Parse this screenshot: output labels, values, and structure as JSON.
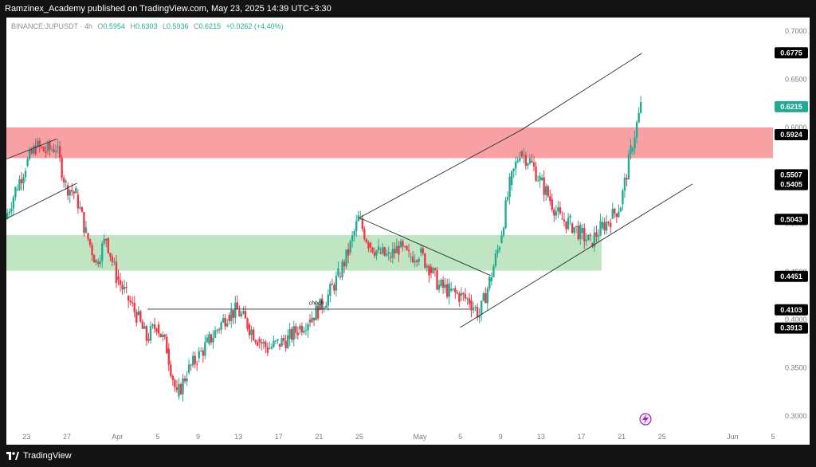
{
  "header": {
    "publisher": "Ramzinex_Academy published on TradingView.com, May 23, 2025 14:39 UTC+3:30"
  },
  "legend": {
    "symbol": "BINANCE:JUPUSDT · 4h",
    "o_label": "O",
    "o_value": "0.5954",
    "h_label": "H",
    "h_value": "0.6303",
    "l_label": "L",
    "l_value": "0.5936",
    "c_label": "C",
    "c_value": "0.6215",
    "change": "+0.0262 (+4.40%)"
  },
  "footer": {
    "brand": "TradingView"
  },
  "icons": {
    "logo": "tradingview-logo-icon",
    "flash": "lightning-icon"
  },
  "colors": {
    "up": "#22ab94",
    "down": "#f23645",
    "supply_zone": "#f7a1a5",
    "demand_zone": "#bfe5c2",
    "line": "#2a2e39",
    "last_price": "#22ab94",
    "axis_text": "#787b86"
  },
  "chart_data": {
    "type": "candlestick",
    "title": "",
    "interval": "4h",
    "ylim": [
      0.28,
      0.72
    ],
    "grid": false,
    "y_ticks": [
      "0.7000",
      "0.6500",
      "0.6000",
      "0.5500",
      "0.5000",
      "0.4500",
      "0.4000",
      "0.3500",
      "0.3000"
    ],
    "x_ticks": [
      {
        "label": "23",
        "date": "2025-03-23"
      },
      {
        "label": "27",
        "date": "2025-03-27"
      },
      {
        "label": "Apr",
        "date": "2025-04-01"
      },
      {
        "label": "5",
        "date": "2025-04-05"
      },
      {
        "label": "9",
        "date": "2025-04-09"
      },
      {
        "label": "13",
        "date": "2025-04-13"
      },
      {
        "label": "17",
        "date": "2025-04-17"
      },
      {
        "label": "21",
        "date": "2025-04-21"
      },
      {
        "label": "25",
        "date": "2025-04-25"
      },
      {
        "label": "May",
        "date": "2025-05-01"
      },
      {
        "label": "5",
        "date": "2025-05-05"
      },
      {
        "label": "9",
        "date": "2025-05-09"
      },
      {
        "label": "13",
        "date": "2025-05-13"
      },
      {
        "label": "17",
        "date": "2025-05-17"
      },
      {
        "label": "21",
        "date": "2025-05-21"
      },
      {
        "label": "25",
        "date": "2025-05-25"
      },
      {
        "label": "Jun",
        "date": "2025-06-01"
      },
      {
        "label": "5",
        "date": "2025-06-05"
      }
    ],
    "price_labels": [
      {
        "value": 0.6775,
        "kind": "line"
      },
      {
        "value": 0.6215,
        "kind": "last"
      },
      {
        "value": 0.5924,
        "kind": "level"
      },
      {
        "value": 0.5507,
        "kind": "level"
      },
      {
        "value": 0.5405,
        "kind": "level"
      },
      {
        "value": 0.5043,
        "kind": "level"
      },
      {
        "value": 0.4451,
        "kind": "level"
      },
      {
        "value": 0.4103,
        "kind": "level"
      },
      {
        "value": 0.3913,
        "kind": "level"
      }
    ],
    "zones": [
      {
        "name": "supply",
        "from": 0.568,
        "to": 0.6,
        "x_start": "2025-03-21",
        "x_end": "2025-06-05"
      },
      {
        "name": "demand",
        "from": 0.451,
        "to": 0.488,
        "x_start": "2025-03-21",
        "x_end": "2025-05-19"
      }
    ],
    "annotations": [
      {
        "text": "choch",
        "x": "2025-04-20",
        "y": 0.413
      }
    ],
    "trendlines": [
      {
        "x1": "2025-03-21",
        "y1": 0.567,
        "x2": "2025-03-26",
        "y2": 0.588
      },
      {
        "x1": "2025-03-21",
        "y1": 0.505,
        "x2": "2025-03-28",
        "y2": 0.542
      },
      {
        "x1": "2025-04-04",
        "y1": 0.411,
        "x2": "2025-05-06",
        "y2": 0.411
      },
      {
        "x1": "2025-04-25",
        "y1": 0.506,
        "x2": "2025-05-08",
        "y2": 0.446
      },
      {
        "x1": "2025-04-25",
        "y1": 0.506,
        "x2": "2025-05-11",
        "y2": 0.597
      },
      {
        "x1": "2025-05-11",
        "y1": 0.597,
        "x2": "2025-05-23",
        "y2": 0.677
      },
      {
        "x1": "2025-05-05",
        "y1": 0.392,
        "x2": "2025-05-28",
        "y2": 0.541
      }
    ],
    "series": [
      {
        "name": "JUPUSDT",
        "points": [
          [
            "2025-03-21",
            0.505
          ],
          [
            "2025-03-22",
            0.535
          ],
          [
            "2025-03-23",
            0.56
          ],
          [
            "2025-03-24",
            0.58
          ],
          [
            "2025-03-25",
            0.575
          ],
          [
            "2025-03-26",
            0.58
          ],
          [
            "2025-03-27",
            0.54
          ],
          [
            "2025-03-28",
            0.53
          ],
          [
            "2025-03-29",
            0.49
          ],
          [
            "2025-03-30",
            0.46
          ],
          [
            "2025-03-31",
            0.485
          ],
          [
            "2025-04-01",
            0.445
          ],
          [
            "2025-04-02",
            0.425
          ],
          [
            "2025-04-03",
            0.405
          ],
          [
            "2025-04-04",
            0.38
          ],
          [
            "2025-04-05",
            0.395
          ],
          [
            "2025-04-06",
            0.37
          ],
          [
            "2025-04-07",
            0.32
          ],
          [
            "2025-04-08",
            0.345
          ],
          [
            "2025-04-09",
            0.36
          ],
          [
            "2025-04-10",
            0.375
          ],
          [
            "2025-04-11",
            0.39
          ],
          [
            "2025-04-12",
            0.405
          ],
          [
            "2025-04-13",
            0.41
          ],
          [
            "2025-04-14",
            0.395
          ],
          [
            "2025-04-15",
            0.38
          ],
          [
            "2025-04-16",
            0.37
          ],
          [
            "2025-04-17",
            0.375
          ],
          [
            "2025-04-18",
            0.38
          ],
          [
            "2025-04-19",
            0.39
          ],
          [
            "2025-04-20",
            0.4
          ],
          [
            "2025-04-21",
            0.41
          ],
          [
            "2025-04-22",
            0.425
          ],
          [
            "2025-04-23",
            0.445
          ],
          [
            "2025-04-24",
            0.47
          ],
          [
            "2025-04-25",
            0.505
          ],
          [
            "2025-04-26",
            0.48
          ],
          [
            "2025-04-27",
            0.47
          ],
          [
            "2025-04-28",
            0.465
          ],
          [
            "2025-04-29",
            0.475
          ],
          [
            "2025-04-30",
            0.465
          ],
          [
            "2025-05-01",
            0.47
          ],
          [
            "2025-05-02",
            0.455
          ],
          [
            "2025-05-03",
            0.435
          ],
          [
            "2025-05-04",
            0.43
          ],
          [
            "2025-05-05",
            0.425
          ],
          [
            "2025-05-06",
            0.42
          ],
          [
            "2025-05-07",
            0.405
          ],
          [
            "2025-05-08",
            0.44
          ],
          [
            "2025-05-09",
            0.48
          ],
          [
            "2025-05-10",
            0.54
          ],
          [
            "2025-05-11",
            0.575
          ],
          [
            "2025-05-12",
            0.565
          ],
          [
            "2025-05-13",
            0.545
          ],
          [
            "2025-05-14",
            0.525
          ],
          [
            "2025-05-15",
            0.505
          ],
          [
            "2025-05-16",
            0.5
          ],
          [
            "2025-05-17",
            0.49
          ],
          [
            "2025-05-18",
            0.48
          ],
          [
            "2025-05-19",
            0.495
          ],
          [
            "2025-05-20",
            0.505
          ],
          [
            "2025-05-21",
            0.52
          ],
          [
            "2025-05-22",
            0.575
          ],
          [
            "2025-05-23",
            0.6215
          ]
        ]
      }
    ]
  }
}
